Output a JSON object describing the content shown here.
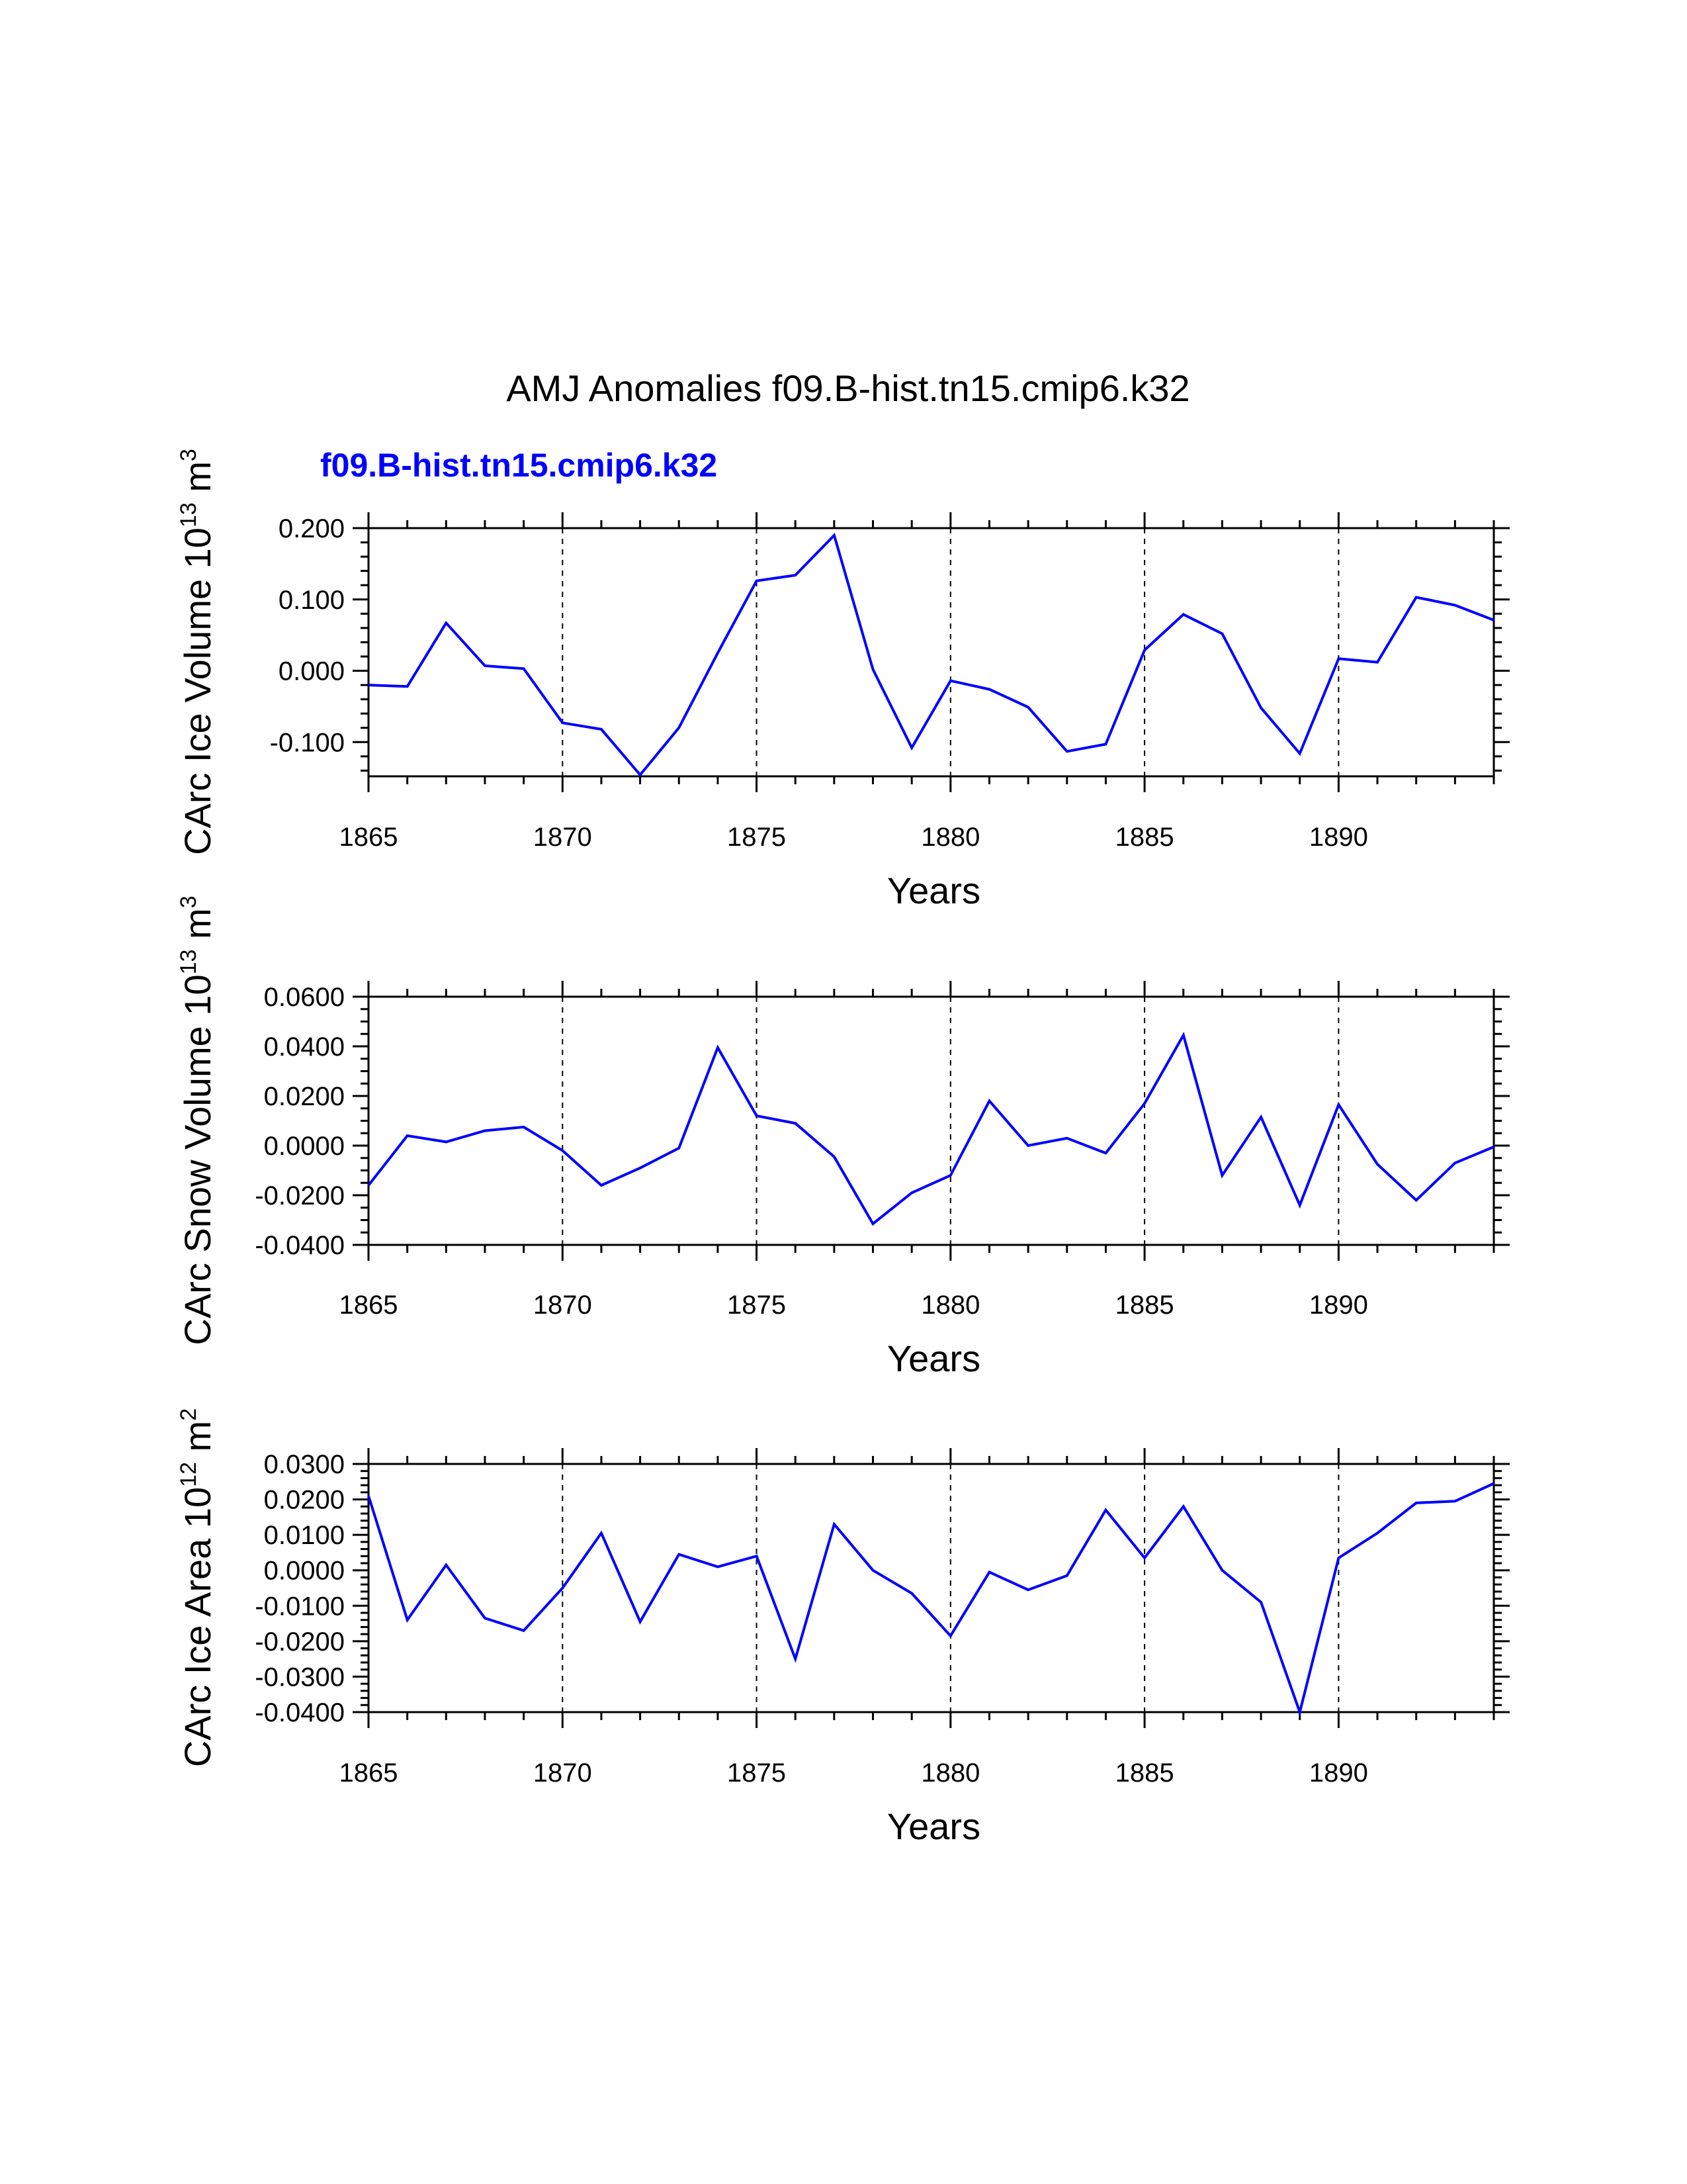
{
  "title": "AMJ Anomalies f09.B-hist.tn15.cmip6.k32",
  "case_label": "f09.B-hist.tn15.cmip6.k32",
  "line_color": "#0000ff",
  "chart_data": [
    {
      "type": "line",
      "ylabel": {
        "text": "CArc Ice Volume 10",
        "exp": "13",
        "unit": " m",
        "unit_exp": "3"
      },
      "xlabel": "Years",
      "xlim": [
        1865,
        1894
      ],
      "ylim": [
        -0.148,
        0.2
      ],
      "yticks": [
        -0.1,
        0.0,
        0.1,
        0.2
      ],
      "ytick_labels": [
        "-0.100",
        "0.000",
        "0.100",
        "0.200"
      ],
      "yminor_step": 0.02,
      "xticks": [
        1865,
        1870,
        1875,
        1880,
        1885,
        1890
      ],
      "xtick_labels": [
        "1865",
        "1870",
        "1875",
        "1880",
        "1885",
        "1890"
      ],
      "gridlines_x": [
        1870,
        1875,
        1880,
        1885,
        1890
      ],
      "series": [
        {
          "name": "f09.B-hist.tn15.cmip6.k32",
          "x": [
            1865,
            1866,
            1867,
            1868,
            1869,
            1870,
            1871,
            1872,
            1873,
            1874,
            1875,
            1876,
            1877,
            1878,
            1879,
            1880,
            1881,
            1882,
            1883,
            1884,
            1885,
            1886,
            1887,
            1888,
            1889,
            1890,
            1891,
            1892,
            1893,
            1894
          ],
          "values": [
            -0.02,
            -0.022,
            0.067,
            0.007,
            0.003,
            -0.073,
            -0.082,
            -0.146,
            -0.08,
            0.025,
            0.126,
            0.134,
            0.19,
            0.002,
            -0.108,
            -0.014,
            -0.026,
            -0.051,
            -0.113,
            -0.103,
            0.029,
            0.079,
            0.052,
            -0.052,
            -0.116,
            0.017,
            0.012,
            0.103,
            0.092,
            0.071
          ]
        }
      ]
    },
    {
      "type": "line",
      "ylabel": {
        "text": "CArc Snow Volume 10",
        "exp": "13",
        "unit": " m",
        "unit_exp": "3"
      },
      "xlabel": "Years",
      "xlim": [
        1865,
        1894
      ],
      "ylim": [
        -0.04,
        0.06
      ],
      "yticks": [
        -0.04,
        -0.02,
        0.0,
        0.02,
        0.04,
        0.06
      ],
      "ytick_labels": [
        "-0.0400",
        "-0.0200",
        "0.0000",
        "0.0200",
        "0.0400",
        "0.0600"
      ],
      "yminor_step": 0.005,
      "xticks": [
        1865,
        1870,
        1875,
        1880,
        1885,
        1890
      ],
      "xtick_labels": [
        "1865",
        "1870",
        "1875",
        "1880",
        "1885",
        "1890"
      ],
      "gridlines_x": [
        1870,
        1875,
        1880,
        1885,
        1890
      ],
      "series": [
        {
          "name": "f09.B-hist.tn15.cmip6.k32",
          "x": [
            1865,
            1866,
            1867,
            1868,
            1869,
            1870,
            1871,
            1872,
            1873,
            1874,
            1875,
            1876,
            1877,
            1878,
            1879,
            1880,
            1881,
            1882,
            1883,
            1884,
            1885,
            1886,
            1887,
            1888,
            1889,
            1890,
            1891,
            1892,
            1893,
            1894
          ],
          "values": [
            -0.016,
            0.004,
            0.0015,
            0.006,
            0.0075,
            -0.002,
            -0.016,
            -0.009,
            -0.001,
            0.0395,
            0.012,
            0.009,
            -0.0045,
            -0.0315,
            -0.019,
            -0.012,
            0.018,
            0.0,
            0.003,
            -0.003,
            0.017,
            0.0445,
            -0.012,
            0.0115,
            -0.024,
            0.0165,
            -0.0075,
            -0.022,
            -0.007,
            -0.0005
          ]
        }
      ]
    },
    {
      "type": "line",
      "ylabel": {
        "text": "CArc Ice Area 10",
        "exp": "12",
        "unit": " m",
        "unit_exp": "2"
      },
      "xlabel": "Years",
      "xlim": [
        1865,
        1894
      ],
      "ylim": [
        -0.04,
        0.03
      ],
      "yticks": [
        -0.04,
        -0.03,
        -0.02,
        -0.01,
        0.0,
        0.01,
        0.02,
        0.03
      ],
      "ytick_labels": [
        "-0.0400",
        "-0.0300",
        "-0.0200",
        "-0.0100",
        "0.0000",
        "0.0100",
        "0.0200",
        "0.0300"
      ],
      "yminor_step": 0.002,
      "xticks": [
        1865,
        1870,
        1875,
        1880,
        1885,
        1890
      ],
      "xtick_labels": [
        "1865",
        "1870",
        "1875",
        "1880",
        "1885",
        "1890"
      ],
      "gridlines_x": [
        1870,
        1875,
        1880,
        1885,
        1890
      ],
      "series": [
        {
          "name": "f09.B-hist.tn15.cmip6.k32",
          "x": [
            1865,
            1866,
            1867,
            1868,
            1869,
            1870,
            1871,
            1872,
            1873,
            1874,
            1875,
            1876,
            1877,
            1878,
            1879,
            1880,
            1881,
            1882,
            1883,
            1884,
            1885,
            1886,
            1887,
            1888,
            1889,
            1890,
            1891,
            1892,
            1893,
            1894
          ],
          "values": [
            0.021,
            -0.014,
            0.0015,
            -0.0135,
            -0.017,
            -0.005,
            0.0105,
            -0.0145,
            0.0045,
            0.001,
            0.004,
            -0.025,
            0.013,
            0.0,
            -0.0065,
            -0.0185,
            -0.0005,
            -0.0055,
            -0.0015,
            0.017,
            0.0035,
            0.018,
            0.0,
            -0.009,
            -0.04,
            0.0035,
            0.0105,
            0.019,
            0.0195,
            0.0245
          ]
        }
      ]
    }
  ]
}
